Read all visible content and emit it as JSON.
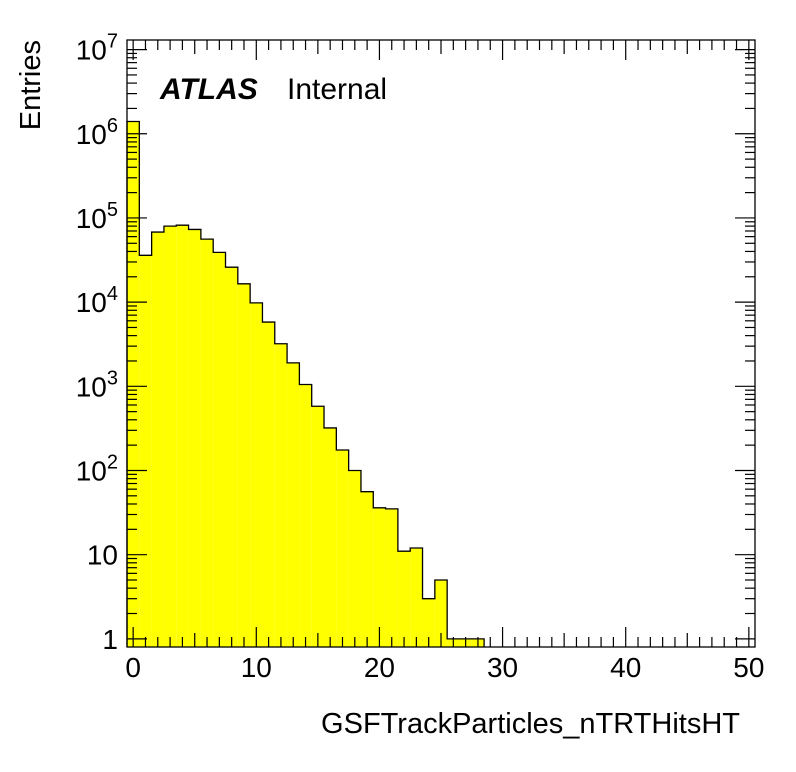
{
  "chart_data": {
    "type": "bar",
    "subtype": "histogram",
    "yscale": "log",
    "x_range": [
      -0.5,
      50.5
    ],
    "ylim": [
      0.8,
      13000000
    ],
    "xlabel": "GSFTrackParticles_nTRTHitsHT",
    "ylabel": "Entries",
    "xticks": [
      0,
      10,
      20,
      30,
      40,
      50
    ],
    "yticks": [
      {
        "value": 1,
        "base": "1",
        "exp": ""
      },
      {
        "value": 10,
        "base": "10",
        "exp": ""
      },
      {
        "value": 100,
        "base": "10",
        "exp": "2"
      },
      {
        "value": 1000,
        "base": "10",
        "exp": "3"
      },
      {
        "value": 10000,
        "base": "10",
        "exp": "4"
      },
      {
        "value": 100000,
        "base": "10",
        "exp": "5"
      },
      {
        "value": 1000000,
        "base": "10",
        "exp": "6"
      },
      {
        "value": 10000000,
        "base": "10",
        "exp": "7"
      }
    ],
    "bin_width": 1,
    "bin_centers": [
      0,
      1,
      2,
      3,
      4,
      5,
      6,
      7,
      8,
      9,
      10,
      11,
      12,
      13,
      14,
      15,
      16,
      17,
      18,
      19,
      20,
      21,
      22,
      23,
      24,
      25,
      26,
      27,
      28,
      29,
      30,
      31,
      32,
      33,
      34,
      35,
      36,
      37,
      38,
      39,
      40,
      41,
      42,
      43,
      44,
      45,
      46,
      47,
      48,
      49,
      50
    ],
    "values": [
      1400000,
      36000,
      68000,
      80000,
      82000,
      73000,
      56000,
      39000,
      26000,
      16500,
      9800,
      5800,
      3200,
      1900,
      1050,
      580,
      320,
      175,
      100,
      56,
      36,
      35,
      11,
      12,
      3,
      5,
      1,
      1,
      1,
      0,
      0,
      0,
      0,
      0,
      0,
      0,
      0,
      0,
      0,
      0,
      0,
      0,
      0,
      0,
      0,
      0,
      0,
      0,
      0,
      0,
      0
    ],
    "fill_color": "#ffff00",
    "line_color": "#000000",
    "grid": false,
    "legend": "none"
  },
  "label": {
    "experiment": "ATLAS",
    "status": "Internal"
  }
}
